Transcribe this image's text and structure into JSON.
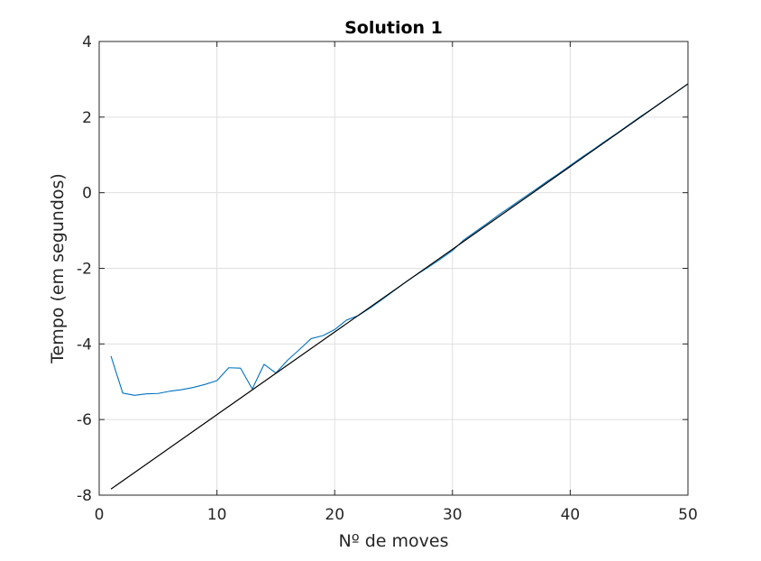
{
  "chart_data": {
    "type": "line",
    "title": "Solution 1",
    "xlabel": "Nº de moves",
    "ylabel": "Tempo (em segundos)",
    "xlim": [
      0,
      50
    ],
    "ylim": [
      -8,
      4
    ],
    "xticks": [
      0,
      10,
      20,
      30,
      40,
      50
    ],
    "yticks": [
      -8,
      -6,
      -4,
      -2,
      0,
      2,
      4
    ],
    "xtick_labels": [
      "0",
      "10",
      "20",
      "30",
      "40",
      "50"
    ],
    "ytick_labels": [
      "-8",
      "-6",
      "-4",
      "-2",
      "0",
      "2",
      "4"
    ],
    "grid": true,
    "series": [
      {
        "color": "#0072bd",
        "x": [
          1,
          2,
          3,
          4,
          5,
          6,
          7,
          8,
          9,
          10,
          11,
          12,
          13,
          14,
          15,
          16,
          17,
          18,
          19,
          20,
          21,
          22,
          23,
          24,
          25,
          26,
          27,
          28,
          29,
          30,
          31,
          32,
          33,
          34,
          35,
          36,
          37,
          38,
          39,
          40,
          41,
          42,
          43,
          44,
          45,
          46,
          47,
          48,
          49,
          50
        ],
        "y": [
          -4.32,
          -5.3,
          -5.36,
          -5.32,
          -5.31,
          -5.25,
          -5.21,
          -5.15,
          -5.07,
          -4.97,
          -4.63,
          -4.64,
          -5.19,
          -4.54,
          -4.77,
          -4.43,
          -4.15,
          -3.86,
          -3.78,
          -3.62,
          -3.37,
          -3.25,
          -3.05,
          -2.83,
          -2.6,
          -2.37,
          -2.16,
          -1.96,
          -1.75,
          -1.53,
          -1.24,
          -1.02,
          -0.8,
          -0.57,
          -0.36,
          -0.14,
          0.07,
          0.29,
          0.5,
          0.72,
          0.94,
          1.15,
          1.37,
          1.58,
          1.8,
          2.02,
          2.23,
          2.45,
          2.66,
          2.88
        ]
      },
      {
        "color": "#000000",
        "x": [
          1,
          50
        ],
        "y": [
          -7.84,
          2.88
        ]
      }
    ]
  }
}
